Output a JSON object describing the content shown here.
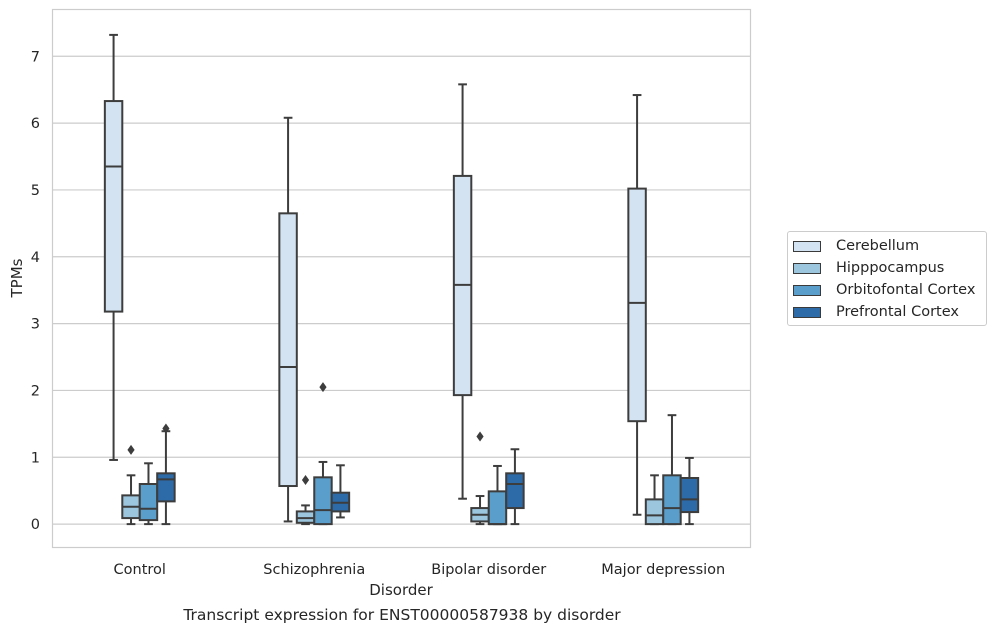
{
  "chart_data": {
    "type": "box",
    "title": "Transcript expression for ENST00000587938 by disorder",
    "xlabel": "Disorder",
    "ylabel": "TPMs",
    "ylim": [
      -0.35,
      7.7
    ],
    "yticks": [
      0,
      1,
      2,
      3,
      4,
      5,
      6,
      7
    ],
    "grid": "horizontal",
    "legend_position": "right",
    "categories": [
      "Control",
      "Schizophrenia",
      "Bipolar disorder",
      "Major depression"
    ],
    "series": [
      {
        "name": "Cerebellum",
        "color": "#d4e3f2",
        "boxes": [
          {
            "whislo": 0.96,
            "q1": 3.18,
            "med": 5.35,
            "q3": 6.33,
            "whishi": 7.32,
            "fliers": []
          },
          {
            "whislo": 0.04,
            "q1": 0.57,
            "med": 2.35,
            "q3": 4.65,
            "whishi": 6.08,
            "fliers": []
          },
          {
            "whislo": 0.38,
            "q1": 1.93,
            "med": 3.58,
            "q3": 5.21,
            "whishi": 6.58,
            "fliers": []
          },
          {
            "whislo": 0.14,
            "q1": 1.54,
            "med": 3.31,
            "q3": 5.02,
            "whishi": 6.42,
            "fliers": []
          }
        ]
      },
      {
        "name": "Hipppocampus",
        "color": "#9cc5de",
        "boxes": [
          {
            "whislo": 0.0,
            "q1": 0.09,
            "med": 0.26,
            "q3": 0.43,
            "whishi": 0.73,
            "fliers": [
              1.11
            ]
          },
          {
            "whislo": 0.0,
            "q1": 0.02,
            "med": 0.09,
            "q3": 0.19,
            "whishi": 0.28,
            "fliers": [
              0.66
            ]
          },
          {
            "whislo": 0.0,
            "q1": 0.04,
            "med": 0.14,
            "q3": 0.24,
            "whishi": 0.42,
            "fliers": [
              1.31
            ]
          },
          {
            "whislo": 0.0,
            "q1": 0.0,
            "med": 0.13,
            "q3": 0.37,
            "whishi": 0.73,
            "fliers": []
          }
        ]
      },
      {
        "name": "Orbitofontal Cortex",
        "color": "#5a9fcc",
        "boxes": [
          {
            "whislo": 0.0,
            "q1": 0.06,
            "med": 0.23,
            "q3": 0.6,
            "whishi": 0.91,
            "fliers": []
          },
          {
            "whislo": 0.0,
            "q1": 0.0,
            "med": 0.21,
            "q3": 0.7,
            "whishi": 0.93,
            "fliers": [
              2.05
            ]
          },
          {
            "whislo": 0.0,
            "q1": 0.0,
            "med": 0.0,
            "q3": 0.49,
            "whishi": 0.87,
            "fliers": []
          },
          {
            "whislo": 0.0,
            "q1": 0.0,
            "med": 0.24,
            "q3": 0.73,
            "whishi": 1.63,
            "fliers": []
          }
        ]
      },
      {
        "name": "Prefrontal Cortex",
        "color": "#2c6aa8",
        "boxes": [
          {
            "whislo": 0.0,
            "q1": 0.34,
            "med": 0.67,
            "q3": 0.76,
            "whishi": 1.39,
            "fliers": [
              1.43
            ]
          },
          {
            "whislo": 0.1,
            "q1": 0.19,
            "med": 0.32,
            "q3": 0.47,
            "whishi": 0.88,
            "fliers": []
          },
          {
            "whislo": 0.0,
            "q1": 0.24,
            "med": 0.6,
            "q3": 0.76,
            "whishi": 1.12,
            "fliers": []
          },
          {
            "whislo": 0.0,
            "q1": 0.18,
            "med": 0.37,
            "q3": 0.69,
            "whishi": 0.99,
            "fliers": []
          }
        ]
      }
    ]
  }
}
